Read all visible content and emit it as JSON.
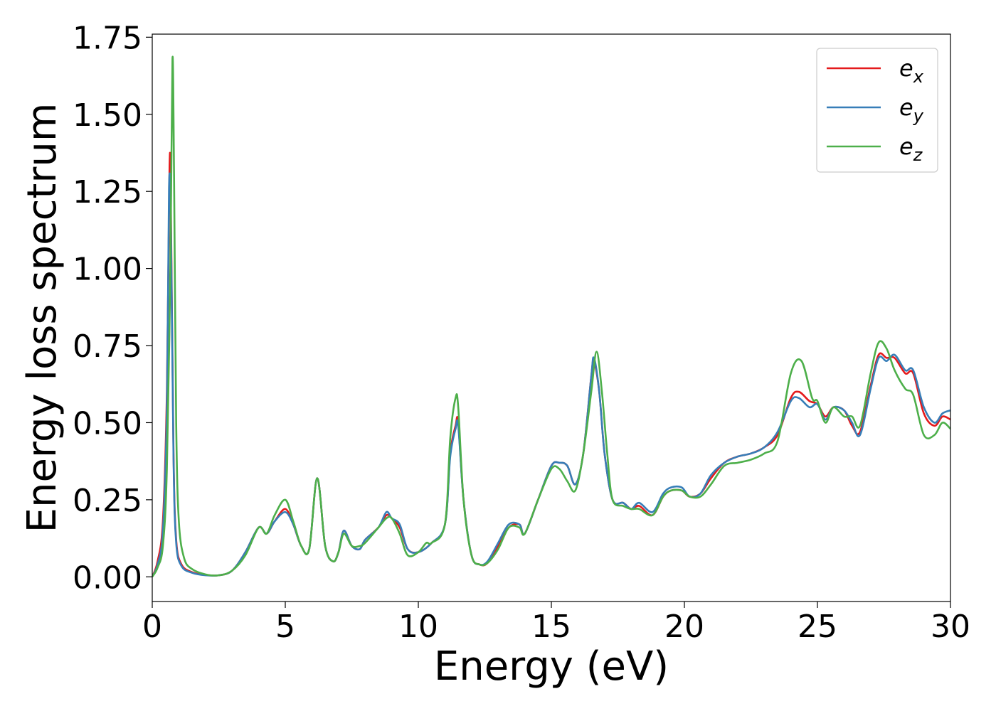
{
  "chart_data": {
    "type": "line",
    "title": "",
    "xlabel": "Energy (eV)",
    "ylabel": "Energy loss spectrum",
    "xlim": [
      0,
      30
    ],
    "ylim": [
      -0.08,
      1.76
    ],
    "xticks": [
      0,
      5,
      10,
      15,
      20,
      25,
      30
    ],
    "xtick_labels": [
      "0",
      "5",
      "10",
      "15",
      "20",
      "25",
      "30"
    ],
    "yticks": [
      0.0,
      0.25,
      0.5,
      0.75,
      1.0,
      1.25,
      1.5,
      1.75
    ],
    "ytick_labels": [
      "0.00",
      "0.25",
      "0.50",
      "0.75",
      "1.00",
      "1.25",
      "1.50",
      "1.75"
    ],
    "grid": false,
    "legend_position": "top-right",
    "series": [
      {
        "name": "e",
        "subscript": "x",
        "color": "#e41a1c",
        "points": [
          [
            0,
            0.0
          ],
          [
            0.2,
            0.05
          ],
          [
            0.4,
            0.18
          ],
          [
            0.55,
            0.6
          ],
          [
            0.65,
            1.33
          ],
          [
            0.7,
            1.2
          ],
          [
            0.8,
            0.4
          ],
          [
            0.9,
            0.12
          ],
          [
            1.1,
            0.04
          ],
          [
            1.5,
            0.015
          ],
          [
            2.0,
            0.006
          ],
          [
            2.5,
            0.005
          ],
          [
            3.0,
            0.02
          ],
          [
            3.5,
            0.08
          ],
          [
            4.0,
            0.16
          ],
          [
            4.3,
            0.14
          ],
          [
            4.6,
            0.18
          ],
          [
            5.0,
            0.22
          ],
          [
            5.3,
            0.17
          ],
          [
            5.6,
            0.1
          ],
          [
            5.9,
            0.09
          ],
          [
            6.2,
            0.32
          ],
          [
            6.5,
            0.1
          ],
          [
            6.8,
            0.05
          ],
          [
            7.0,
            0.08
          ],
          [
            7.2,
            0.15
          ],
          [
            7.5,
            0.1
          ],
          [
            7.8,
            0.09
          ],
          [
            8.0,
            0.12
          ],
          [
            8.5,
            0.16
          ],
          [
            8.8,
            0.2
          ],
          [
            9.0,
            0.19
          ],
          [
            9.3,
            0.16
          ],
          [
            9.6,
            0.09
          ],
          [
            10.0,
            0.08
          ],
          [
            10.5,
            0.11
          ],
          [
            11.0,
            0.17
          ],
          [
            11.2,
            0.4
          ],
          [
            11.4,
            0.49
          ],
          [
            11.5,
            0.5
          ],
          [
            11.7,
            0.25
          ],
          [
            12.0,
            0.07
          ],
          [
            12.3,
            0.04
          ],
          [
            12.6,
            0.045
          ],
          [
            13.0,
            0.1
          ],
          [
            13.4,
            0.16
          ],
          [
            13.8,
            0.17
          ],
          [
            14.0,
            0.14
          ],
          [
            14.5,
            0.25
          ],
          [
            15.0,
            0.36
          ],
          [
            15.3,
            0.37
          ],
          [
            15.6,
            0.36
          ],
          [
            15.9,
            0.3
          ],
          [
            16.2,
            0.4
          ],
          [
            16.5,
            0.65
          ],
          [
            16.6,
            0.7
          ],
          [
            16.8,
            0.6
          ],
          [
            17.0,
            0.4
          ],
          [
            17.3,
            0.25
          ],
          [
            17.7,
            0.24
          ],
          [
            18.0,
            0.22
          ],
          [
            18.3,
            0.23
          ],
          [
            18.8,
            0.2
          ],
          [
            19.2,
            0.26
          ],
          [
            19.5,
            0.28
          ],
          [
            19.9,
            0.28
          ],
          [
            20.2,
            0.26
          ],
          [
            20.6,
            0.27
          ],
          [
            21.0,
            0.32
          ],
          [
            21.5,
            0.37
          ],
          [
            22.0,
            0.39
          ],
          [
            22.5,
            0.4
          ],
          [
            23.0,
            0.42
          ],
          [
            23.5,
            0.46
          ],
          [
            24.0,
            0.58
          ],
          [
            24.3,
            0.6
          ],
          [
            24.7,
            0.57
          ],
          [
            25.0,
            0.56
          ],
          [
            25.3,
            0.52
          ],
          [
            25.6,
            0.55
          ],
          [
            26.0,
            0.54
          ],
          [
            26.3,
            0.49
          ],
          [
            26.6,
            0.47
          ],
          [
            27.0,
            0.62
          ],
          [
            27.3,
            0.72
          ],
          [
            27.6,
            0.71
          ],
          [
            27.9,
            0.71
          ],
          [
            28.3,
            0.66
          ],
          [
            28.6,
            0.66
          ],
          [
            29.0,
            0.53
          ],
          [
            29.4,
            0.49
          ],
          [
            29.7,
            0.52
          ],
          [
            30.0,
            0.51
          ]
        ]
      },
      {
        "name": "e",
        "subscript": "y",
        "color": "#377eb8",
        "points": [
          [
            0,
            0.0
          ],
          [
            0.2,
            0.04
          ],
          [
            0.4,
            0.15
          ],
          [
            0.55,
            0.55
          ],
          [
            0.63,
            1.26
          ],
          [
            0.7,
            1.15
          ],
          [
            0.8,
            0.38
          ],
          [
            0.9,
            0.11
          ],
          [
            1.1,
            0.035
          ],
          [
            1.5,
            0.013
          ],
          [
            2.0,
            0.005
          ],
          [
            2.5,
            0.005
          ],
          [
            3.0,
            0.02
          ],
          [
            3.5,
            0.08
          ],
          [
            4.0,
            0.16
          ],
          [
            4.3,
            0.14
          ],
          [
            4.6,
            0.18
          ],
          [
            5.0,
            0.21
          ],
          [
            5.3,
            0.17
          ],
          [
            5.6,
            0.1
          ],
          [
            5.9,
            0.09
          ],
          [
            6.2,
            0.32
          ],
          [
            6.5,
            0.1
          ],
          [
            6.8,
            0.05
          ],
          [
            7.0,
            0.08
          ],
          [
            7.2,
            0.15
          ],
          [
            7.5,
            0.1
          ],
          [
            7.8,
            0.09
          ],
          [
            8.0,
            0.12
          ],
          [
            8.5,
            0.16
          ],
          [
            8.8,
            0.21
          ],
          [
            9.0,
            0.19
          ],
          [
            9.3,
            0.17
          ],
          [
            9.6,
            0.09
          ],
          [
            10.0,
            0.08
          ],
          [
            10.5,
            0.11
          ],
          [
            11.0,
            0.17
          ],
          [
            11.2,
            0.39
          ],
          [
            11.4,
            0.48
          ],
          [
            11.5,
            0.49
          ],
          [
            11.7,
            0.25
          ],
          [
            12.0,
            0.07
          ],
          [
            12.3,
            0.04
          ],
          [
            12.6,
            0.05
          ],
          [
            13.0,
            0.11
          ],
          [
            13.4,
            0.17
          ],
          [
            13.8,
            0.17
          ],
          [
            14.0,
            0.14
          ],
          [
            14.5,
            0.25
          ],
          [
            15.0,
            0.36
          ],
          [
            15.3,
            0.37
          ],
          [
            15.6,
            0.36
          ],
          [
            15.9,
            0.3
          ],
          [
            16.2,
            0.4
          ],
          [
            16.5,
            0.65
          ],
          [
            16.6,
            0.71
          ],
          [
            16.8,
            0.6
          ],
          [
            17.0,
            0.4
          ],
          [
            17.3,
            0.25
          ],
          [
            17.7,
            0.24
          ],
          [
            18.0,
            0.22
          ],
          [
            18.3,
            0.24
          ],
          [
            18.8,
            0.21
          ],
          [
            19.2,
            0.27
          ],
          [
            19.5,
            0.29
          ],
          [
            19.9,
            0.29
          ],
          [
            20.2,
            0.26
          ],
          [
            20.6,
            0.27
          ],
          [
            21.0,
            0.33
          ],
          [
            21.5,
            0.37
          ],
          [
            22.0,
            0.39
          ],
          [
            22.5,
            0.4
          ],
          [
            23.0,
            0.42
          ],
          [
            23.5,
            0.47
          ],
          [
            24.0,
            0.57
          ],
          [
            24.3,
            0.58
          ],
          [
            24.7,
            0.55
          ],
          [
            25.0,
            0.56
          ],
          [
            25.3,
            0.51
          ],
          [
            25.6,
            0.55
          ],
          [
            26.0,
            0.54
          ],
          [
            26.3,
            0.5
          ],
          [
            26.6,
            0.46
          ],
          [
            27.0,
            0.61
          ],
          [
            27.3,
            0.71
          ],
          [
            27.6,
            0.7
          ],
          [
            27.9,
            0.72
          ],
          [
            28.3,
            0.67
          ],
          [
            28.6,
            0.67
          ],
          [
            29.0,
            0.55
          ],
          [
            29.4,
            0.5
          ],
          [
            29.7,
            0.53
          ],
          [
            30.0,
            0.54
          ]
        ]
      },
      {
        "name": "e",
        "subscript": "z",
        "color": "#4daf4a",
        "points": [
          [
            0,
            0.0
          ],
          [
            0.2,
            0.03
          ],
          [
            0.4,
            0.1
          ],
          [
            0.55,
            0.35
          ],
          [
            0.68,
            1.0
          ],
          [
            0.76,
            1.68
          ],
          [
            0.82,
            1.3
          ],
          [
            0.9,
            0.5
          ],
          [
            1.0,
            0.18
          ],
          [
            1.2,
            0.06
          ],
          [
            1.5,
            0.025
          ],
          [
            2.0,
            0.008
          ],
          [
            2.5,
            0.005
          ],
          [
            3.0,
            0.02
          ],
          [
            3.5,
            0.07
          ],
          [
            4.0,
            0.16
          ],
          [
            4.3,
            0.14
          ],
          [
            4.6,
            0.2
          ],
          [
            5.0,
            0.25
          ],
          [
            5.3,
            0.18
          ],
          [
            5.6,
            0.1
          ],
          [
            5.9,
            0.09
          ],
          [
            6.2,
            0.32
          ],
          [
            6.5,
            0.1
          ],
          [
            6.8,
            0.05
          ],
          [
            7.0,
            0.08
          ],
          [
            7.2,
            0.14
          ],
          [
            7.5,
            0.1
          ],
          [
            7.8,
            0.1
          ],
          [
            8.0,
            0.11
          ],
          [
            8.5,
            0.16
          ],
          [
            8.8,
            0.19
          ],
          [
            9.0,
            0.19
          ],
          [
            9.3,
            0.14
          ],
          [
            9.6,
            0.07
          ],
          [
            10.0,
            0.08
          ],
          [
            10.3,
            0.11
          ],
          [
            10.5,
            0.11
          ],
          [
            11.0,
            0.17
          ],
          [
            11.2,
            0.45
          ],
          [
            11.4,
            0.58
          ],
          [
            11.5,
            0.55
          ],
          [
            11.7,
            0.25
          ],
          [
            12.0,
            0.07
          ],
          [
            12.3,
            0.04
          ],
          [
            12.6,
            0.045
          ],
          [
            13.0,
            0.09
          ],
          [
            13.4,
            0.16
          ],
          [
            13.8,
            0.16
          ],
          [
            14.0,
            0.14
          ],
          [
            14.5,
            0.25
          ],
          [
            15.0,
            0.35
          ],
          [
            15.3,
            0.35
          ],
          [
            15.6,
            0.31
          ],
          [
            15.9,
            0.28
          ],
          [
            16.2,
            0.4
          ],
          [
            16.5,
            0.6
          ],
          [
            16.7,
            0.73
          ],
          [
            16.9,
            0.6
          ],
          [
            17.1,
            0.4
          ],
          [
            17.3,
            0.25
          ],
          [
            17.7,
            0.23
          ],
          [
            18.0,
            0.22
          ],
          [
            18.3,
            0.22
          ],
          [
            18.8,
            0.2
          ],
          [
            19.2,
            0.26
          ],
          [
            19.5,
            0.28
          ],
          [
            19.9,
            0.28
          ],
          [
            20.2,
            0.26
          ],
          [
            20.6,
            0.26
          ],
          [
            21.0,
            0.3
          ],
          [
            21.5,
            0.36
          ],
          [
            22.0,
            0.37
          ],
          [
            22.5,
            0.38
          ],
          [
            23.0,
            0.4
          ],
          [
            23.5,
            0.44
          ],
          [
            24.0,
            0.66
          ],
          [
            24.4,
            0.7
          ],
          [
            24.8,
            0.58
          ],
          [
            25.0,
            0.57
          ],
          [
            25.3,
            0.5
          ],
          [
            25.6,
            0.55
          ],
          [
            26.0,
            0.52
          ],
          [
            26.3,
            0.52
          ],
          [
            26.6,
            0.49
          ],
          [
            27.0,
            0.66
          ],
          [
            27.3,
            0.76
          ],
          [
            27.6,
            0.74
          ],
          [
            27.9,
            0.67
          ],
          [
            28.3,
            0.61
          ],
          [
            28.6,
            0.59
          ],
          [
            29.0,
            0.46
          ],
          [
            29.4,
            0.46
          ],
          [
            29.7,
            0.5
          ],
          [
            30.0,
            0.48
          ]
        ]
      }
    ]
  }
}
